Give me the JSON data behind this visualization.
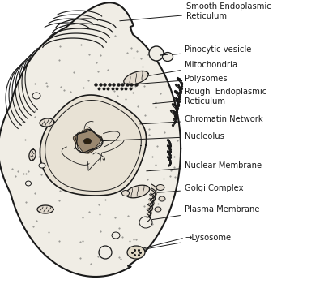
{
  "bg_color": "#ffffff",
  "cell_fill": "#f0ede5",
  "line_color": "#1a1a1a",
  "text_color": "#1a1a1a",
  "fig_width": 4.0,
  "fig_height": 3.66,
  "dpi": 100,
  "labels": {
    "smooth_er": "Smooth Endoplasmic\nReticulum",
    "pinocytic": "Pinocytic vesicle",
    "mitochondria": "Mitochondria",
    "polysomes": "Polysomes",
    "rough_er": "Rough  Endoplasmic\nReticulum",
    "chromatin": "Chromatin Network",
    "nucleolus": "Nucleolus",
    "nuclear_membrane": "Nuclear Membrane",
    "golgi": "Golgi Complex",
    "plasma_membrane": "Plasma Membrane",
    "lysosome": "→Lysosome"
  },
  "label_positions": {
    "smooth_er": [
      228,
      358,
      135,
      345
    ],
    "pinocytic": [
      228,
      305,
      198,
      300
    ],
    "mitochondria": [
      228,
      285,
      175,
      272
    ],
    "polysomes": [
      228,
      268,
      155,
      262
    ],
    "rough_er": [
      228,
      248,
      185,
      240
    ],
    "chromatin": [
      228,
      220,
      168,
      215
    ],
    "nucleolus": [
      228,
      198,
      143,
      200
    ],
    "nuclear_membrane": [
      228,
      160,
      190,
      155
    ],
    "golgi": [
      228,
      133,
      185,
      127
    ],
    "plasma_membrane": [
      228,
      108,
      190,
      95
    ],
    "lysosome": [
      228,
      75,
      165,
      62
    ]
  }
}
